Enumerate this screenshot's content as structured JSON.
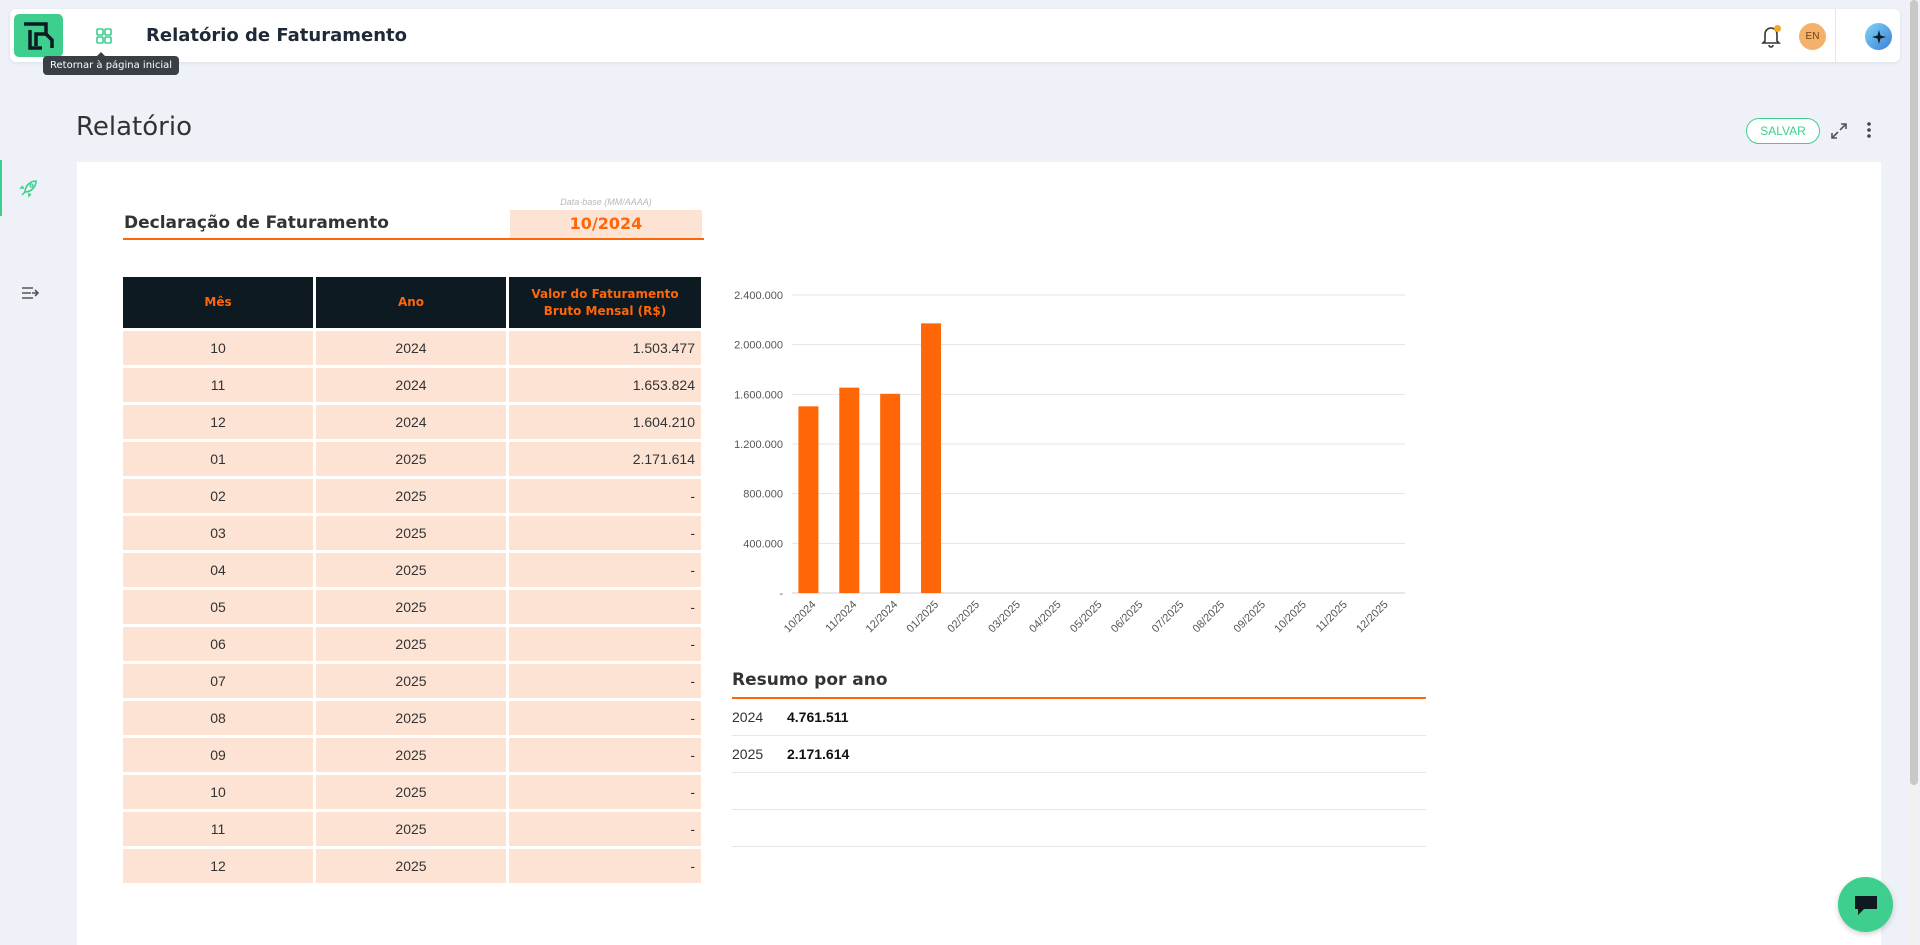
{
  "header": {
    "app_title": "Relatório de Faturamento",
    "tooltip": "Retornar à página inicial",
    "lang": "EN"
  },
  "page": {
    "title": "Relatório",
    "save_label": "SALVAR"
  },
  "declaration": {
    "title": "Declaração de Faturamento",
    "date_label": "Data-base (MM/AAAA)",
    "date_value": "10/2024"
  },
  "table": {
    "headers": [
      "Mês",
      "Ano",
      "Valor do Faturamento Bruto Mensal (R$)"
    ],
    "rows": [
      {
        "mes": "10",
        "ano": "2024",
        "valor": "1.503.477"
      },
      {
        "mes": "11",
        "ano": "2024",
        "valor": "1.653.824"
      },
      {
        "mes": "12",
        "ano": "2024",
        "valor": "1.604.210"
      },
      {
        "mes": "01",
        "ano": "2025",
        "valor": "2.171.614"
      },
      {
        "mes": "02",
        "ano": "2025",
        "valor": "-"
      },
      {
        "mes": "03",
        "ano": "2025",
        "valor": "-"
      },
      {
        "mes": "04",
        "ano": "2025",
        "valor": "-"
      },
      {
        "mes": "05",
        "ano": "2025",
        "valor": "-"
      },
      {
        "mes": "06",
        "ano": "2025",
        "valor": "-"
      },
      {
        "mes": "07",
        "ano": "2025",
        "valor": "-"
      },
      {
        "mes": "08",
        "ano": "2025",
        "valor": "-"
      },
      {
        "mes": "09",
        "ano": "2025",
        "valor": "-"
      },
      {
        "mes": "10",
        "ano": "2025",
        "valor": "-"
      },
      {
        "mes": "11",
        "ano": "2025",
        "valor": "-"
      },
      {
        "mes": "12",
        "ano": "2025",
        "valor": "-"
      }
    ]
  },
  "chart_data": {
    "type": "bar",
    "categories": [
      "10/2024",
      "11/2024",
      "12/2024",
      "01/2025",
      "02/2025",
      "03/2025",
      "04/2025",
      "05/2025",
      "06/2025",
      "07/2025",
      "08/2025",
      "09/2025",
      "10/2025",
      "11/2025",
      "12/2025"
    ],
    "values": [
      1503477,
      1653824,
      1604210,
      2171614,
      null,
      null,
      null,
      null,
      null,
      null,
      null,
      null,
      null,
      null,
      null
    ],
    "yticks": [
      "-",
      "400.000",
      "800.000",
      "1.200.000",
      "1.600.000",
      "2.000.000",
      "2.400.000"
    ],
    "ylim": [
      0,
      2400000
    ],
    "grid": true,
    "color": "#ff6608"
  },
  "resumo": {
    "title": "Resumo por ano",
    "rows": [
      {
        "ano": "2024",
        "valor": "4.761.511"
      },
      {
        "ano": "2025",
        "valor": "2.171.614"
      },
      {
        "ano": "",
        "valor": ""
      },
      {
        "ano": "",
        "valor": ""
      }
    ]
  },
  "colors": {
    "accent": "#3ecf8e",
    "orange": "#ff6608",
    "header_dark": "#0d1a22",
    "cell_bg": "#fde3d4"
  }
}
